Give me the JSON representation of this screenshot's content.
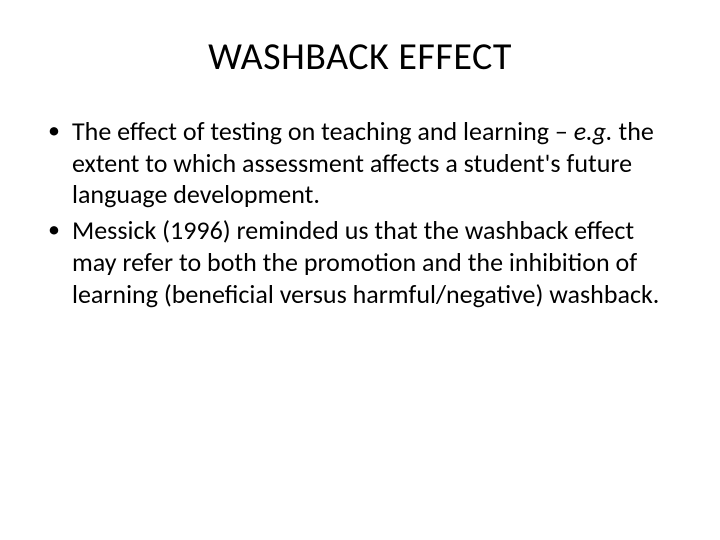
{
  "slide": {
    "title": "WASHBACK EFFECT",
    "title_fontsize": 38,
    "body_fontsize": 26,
    "background_color": "#ffffff",
    "text_color": "#000000",
    "font_family": "Calibri",
    "bullets": [
      {
        "pre": "The effect of testing on teaching and learning – ",
        "italic": "e.g.",
        "post": " the extent to which assessment affects a student's future language development."
      },
      {
        "pre": "Messick (1996) reminded us that the washback effect may refer to both the promotion and the inhibition of learning (beneficial versus harmful/negative) washback.",
        "italic": "",
        "post": ""
      }
    ]
  }
}
